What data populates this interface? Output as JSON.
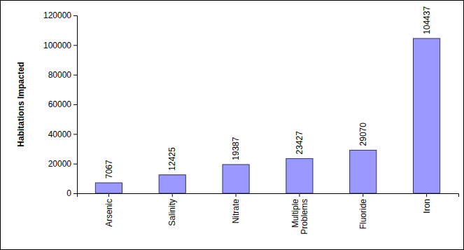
{
  "chart_data": {
    "type": "bar",
    "y_label": "Habitations Impacted",
    "categories": [
      "Arsenic",
      "Salinity",
      "Nitrate",
      "Multiple Problems",
      "Fluoride",
      "Iron"
    ],
    "values": [
      7067,
      12425,
      19387,
      23427,
      29070,
      104437
    ],
    "color": "#9999ff",
    "ylim": [
      0,
      120000
    ],
    "yticks": [
      0,
      20000,
      40000,
      60000,
      80000,
      100000,
      120000
    ],
    "grid": false,
    "data_labels": true
  }
}
